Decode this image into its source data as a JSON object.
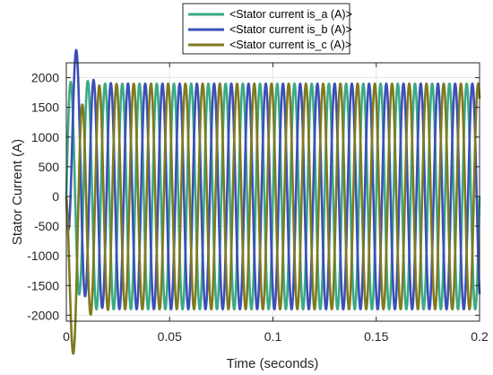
{
  "chart_data": {
    "type": "line",
    "xlabel": "Time (seconds)",
    "ylabel": "Stator Current (A)",
    "xlim": [
      0,
      0.2
    ],
    "ylim": [
      -2100,
      2250
    ],
    "xticks": [
      0,
      0.05,
      0.1,
      0.15,
      0.2
    ],
    "xtick_labels": [
      "0",
      "0.05",
      "0.1",
      "0.15",
      "0.2"
    ],
    "yticks": [
      -2000,
      -1500,
      -1000,
      -500,
      0,
      500,
      1000,
      1500,
      2000
    ],
    "ytick_labels": [
      "-2000",
      "-1500",
      "-1000",
      "-500",
      "0",
      "500",
      "1000",
      "1500",
      "2000"
    ],
    "grid": true,
    "legend_position": "top-center, outside plot",
    "waveform": {
      "frequency_hz": 120,
      "steady_amplitude": 1900,
      "transient_peaks": {
        "is_a": 2150,
        "is_b": -1800,
        "is_c": -2030
      }
    },
    "series": [
      {
        "name": "<Stator current is_a (A)>",
        "color": "#3aaa85",
        "phase_deg": 0
      },
      {
        "name": "<Stator current is_b (A)>",
        "color": "#3b4fb8",
        "phase_deg": -120
      },
      {
        "name": "<Stator current is_c (A)>",
        "color": "#7f7a1e",
        "phase_deg": 120
      }
    ]
  }
}
